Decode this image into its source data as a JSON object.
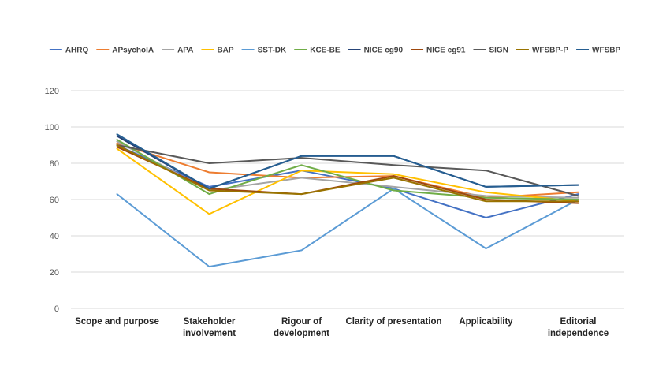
{
  "chart_data": {
    "type": "line",
    "title": "",
    "xlabel": "",
    "ylabel": "",
    "ylim": [
      0,
      120
    ],
    "yticks": [
      0,
      20,
      40,
      60,
      80,
      100,
      120
    ],
    "grid": true,
    "legend_position": "top",
    "categories": [
      [
        "Scope and purpose"
      ],
      [
        "Stakeholder",
        "involvement"
      ],
      [
        "Rigour of",
        "development"
      ],
      [
        "Clarity of presentation"
      ],
      [
        "Applicability"
      ],
      [
        "Editorial",
        "independence"
      ]
    ],
    "series": [
      {
        "name": "AHRQ",
        "color": "#4472c4",
        "values": [
          90,
          67,
          76,
          66,
          50,
          63
        ]
      },
      {
        "name": "APsycholA",
        "color": "#ed7d31",
        "values": [
          91,
          75,
          72,
          73,
          61,
          64
        ]
      },
      {
        "name": "APA",
        "color": "#a5a5a5",
        "values": [
          92,
          65,
          72,
          67,
          62,
          61
        ]
      },
      {
        "name": "BAP",
        "color": "#ffc000",
        "values": [
          88,
          52,
          76,
          74,
          64,
          59
        ]
      },
      {
        "name": "SST-DK",
        "color": "#5b9bd5",
        "values": [
          63,
          23,
          32,
          66,
          33,
          60
        ]
      },
      {
        "name": "KCE-BE",
        "color": "#70ad47",
        "values": [
          93,
          63,
          79,
          65,
          61,
          60
        ]
      },
      {
        "name": "NICE cg90",
        "color": "#264478",
        "values": [
          95,
          66,
          84,
          84,
          67,
          68
        ]
      },
      {
        "name": "NICE cg91",
        "color": "#9e480e",
        "values": [
          89,
          66,
          63,
          73,
          60,
          58
        ]
      },
      {
        "name": "SIGN",
        "color": "#595959",
        "values": [
          90,
          80,
          83,
          79,
          76,
          62
        ]
      },
      {
        "name": "WFSBP-P",
        "color": "#997300",
        "values": [
          90,
          65,
          63,
          72,
          59,
          59
        ]
      },
      {
        "name": "WFSBP",
        "color": "#255e91",
        "values": [
          96,
          66,
          84,
          84,
          67,
          68
        ]
      }
    ]
  }
}
